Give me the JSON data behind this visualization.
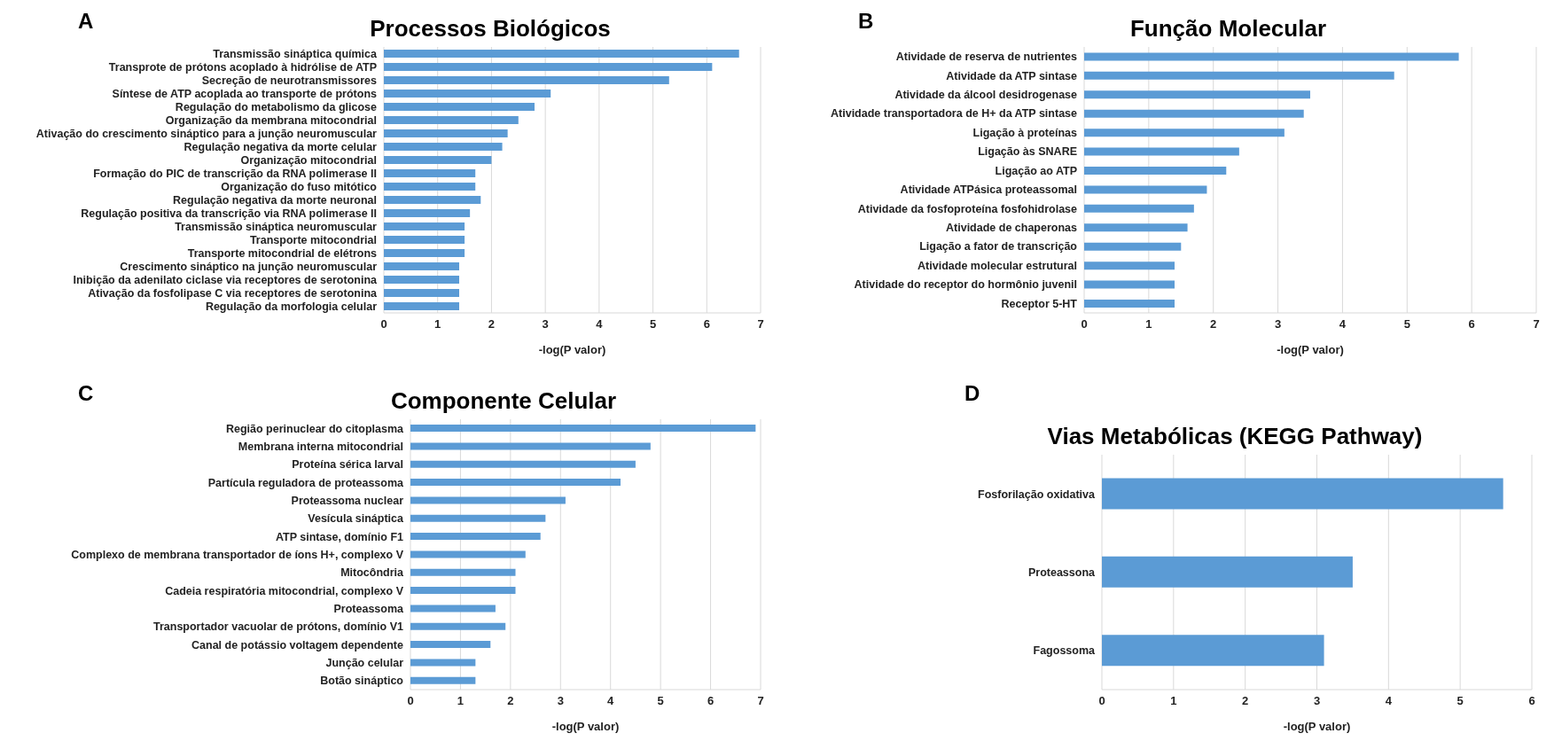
{
  "chart_data": [
    {
      "type": "bar",
      "orientation": "horizontal",
      "title": "Processos Biológicos",
      "annotations": [
        "A"
      ],
      "xlabel": "-log(P valor)",
      "categories": [
        "Transmissão sináptica química",
        "Transprote de prótons acoplado à hidrólise de ATP",
        "Secreção de neurotransmissores",
        "Síntese de ATP acoplada ao transporte de  prótons",
        "Regulação do metabolismo da glicose",
        "Organização da membrana mitocondrial",
        "Ativação do crescimento sináptico para a junção neuromuscular",
        "Regulação negativa da morte celular",
        "Organização mitocondrial",
        "Formação do PIC de transcrição da RNA polimerase II",
        "Organização do fuso mitótico",
        "Regulação negativa da morte neuronal",
        "Regulação positiva da transcrição via RNA polimerase II",
        "Transmissão sináptica neuromuscular",
        "Transporte mitocondrial",
        "Transporte mitocondrial de elétrons",
        "Crescimento sináptico na junção neuromuscular",
        "Inibição da adenilato ciclase via receptores de serotonina",
        "Ativação da fosfolipase C via receptores de serotonina",
        "Regulação da morfologia celular"
      ],
      "values": [
        6.6,
        6.1,
        5.3,
        3.1,
        2.8,
        2.5,
        2.3,
        2.2,
        2.0,
        1.7,
        1.7,
        1.8,
        1.6,
        1.5,
        1.5,
        1.5,
        1.4,
        1.4,
        1.4,
        1.4
      ],
      "color": "#5b9bd5",
      "xlim": [
        0,
        7
      ],
      "xticks": [
        0,
        1,
        2,
        3,
        4,
        5,
        6,
        7
      ],
      "grid": "x"
    },
    {
      "type": "bar",
      "orientation": "horizontal",
      "title": "Função Molecular",
      "annotations": [
        "B"
      ],
      "xlabel": "-log(P valor)",
      "categories": [
        "Atividade de reserva de nutrientes",
        "Atividade da ATP sintase",
        "Atividade da álcool desidrogenase",
        "Atividade transportadora de H+ da ATP sintase",
        "Ligação à proteínas",
        "Ligação às SNARE",
        "Ligação ao ATP",
        "Atividade ATPásica proteassomal",
        "Atividade da fosfoproteína fosfohidrolase",
        "Atividade de chaperonas",
        "Ligação a fator de transcrição",
        "Atividade molecular estrutural",
        "Atividade do receptor do hormônio juvenil",
        "Receptor 5-HT"
      ],
      "values": [
        5.8,
        4.8,
        3.5,
        3.4,
        3.1,
        2.4,
        2.2,
        1.9,
        1.7,
        1.6,
        1.5,
        1.4,
        1.4,
        1.4
      ],
      "color": "#5b9bd5",
      "xlim": [
        0,
        7
      ],
      "xticks": [
        0,
        1,
        2,
        3,
        4,
        5,
        6,
        7
      ],
      "grid": "x"
    },
    {
      "type": "bar",
      "orientation": "horizontal",
      "title": "Componente Celular",
      "annotations": [
        "C"
      ],
      "xlabel": "-log(P valor)",
      "categories": [
        "Região perinuclear do citoplasma",
        "Membrana interna mitocondrial",
        "Proteína sérica larval",
        "Partícula reguladora de proteassoma",
        "Proteassoma nuclear",
        "Vesícula sináptica",
        "ATP sintase, domínio F1",
        "Complexo de membrana transportador de íons H+, complexo V",
        "Mitocôndria",
        "Cadeia respiratória mitocondrial, complexo V",
        "Proteassoma",
        "Transportador vacuolar de prótons, domínio V1",
        "Canal de potássio voltagem dependente",
        "Junção celular",
        "Botão sináptico"
      ],
      "values": [
        6.9,
        4.8,
        4.5,
        4.2,
        3.1,
        2.7,
        2.6,
        2.3,
        2.1,
        2.1,
        1.7,
        1.9,
        1.6,
        1.3,
        1.3
      ],
      "color": "#5b9bd5",
      "xlim": [
        0,
        7
      ],
      "xticks": [
        0,
        1,
        2,
        3,
        4,
        5,
        6,
        7
      ],
      "grid": "x"
    },
    {
      "type": "bar",
      "orientation": "horizontal",
      "title": "Vias Metabólicas (KEGG Pathway)",
      "annotations": [
        "D"
      ],
      "xlabel": "-log(P valor)",
      "categories": [
        "Fosforilação oxidativa",
        "Proteassona",
        "Fagossoma"
      ],
      "values": [
        5.6,
        3.5,
        3.1
      ],
      "color": "#5b9bd5",
      "xlim": [
        0,
        6
      ],
      "xticks": [
        0,
        1,
        2,
        3,
        4,
        5,
        6
      ],
      "grid": "x"
    }
  ]
}
